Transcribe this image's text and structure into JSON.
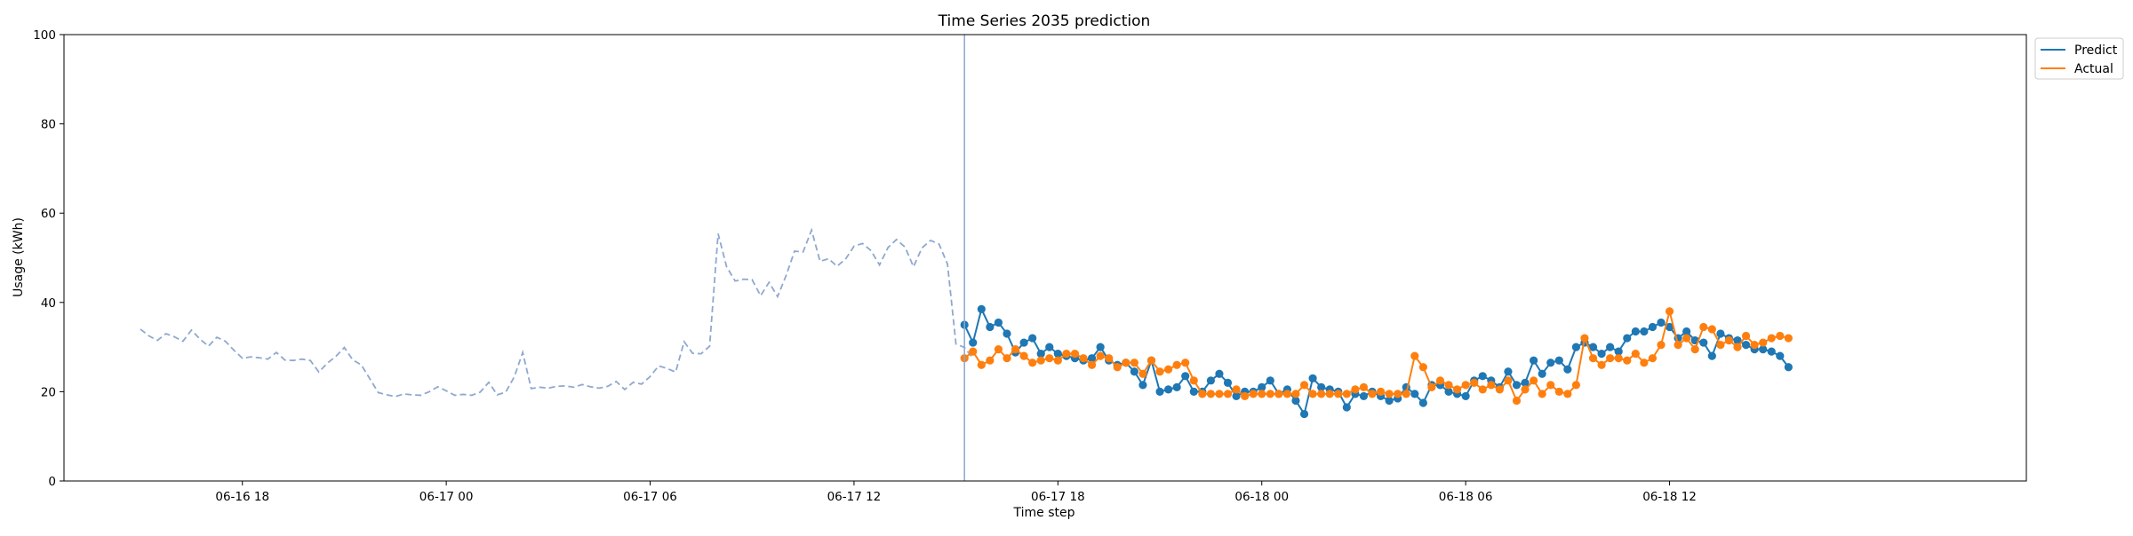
{
  "chart_data": {
    "type": "line",
    "title": "Time Series 2035 prediction",
    "xlabel": "Time step",
    "ylabel": "Usage (kWh)",
    "ylim": [
      0,
      100
    ],
    "xlim": [
      "2035-06-16 12:45",
      "2035-06-18 22:30"
    ],
    "yticks": [
      0,
      20,
      40,
      60,
      80,
      100
    ],
    "xticks": [
      {
        "x": "2035-06-16 18:00",
        "label": "06-16 18"
      },
      {
        "x": "2035-06-17 00:00",
        "label": "06-17 00"
      },
      {
        "x": "2035-06-17 06:00",
        "label": "06-17 06"
      },
      {
        "x": "2035-06-17 12:00",
        "label": "06-17 12"
      },
      {
        "x": "2035-06-17 18:00",
        "label": "06-17 18"
      },
      {
        "x": "2035-06-18 00:00",
        "label": "06-18 00"
      },
      {
        "x": "2035-06-18 06:00",
        "label": "06-18 06"
      },
      {
        "x": "2035-06-18 12:00",
        "label": "06-18 12"
      }
    ],
    "grid": false,
    "legend_position": "outside-top-right",
    "history_start": "2035-06-16 15:00",
    "forecast_start": "2035-06-17 15:15",
    "interval_minutes": 15,
    "prediction_split": "2035-06-17 15:15",
    "series": [
      {
        "style": "dashed",
        "color": "#8fa8d0",
        "times_from": "history_start",
        "values": [
          34.0,
          32.5,
          31.5,
          33.0,
          32.3,
          31.3,
          33.8,
          31.8,
          30.2,
          32.2,
          31.3,
          29.3,
          27.5,
          27.8,
          27.6,
          27.3,
          28.8,
          27.1,
          27.0,
          27.3,
          27.0,
          24.4,
          26.4,
          27.9,
          29.9,
          27.1,
          26.0,
          22.9,
          19.8,
          19.3,
          18.9,
          19.5,
          19.3,
          19.2,
          20.0,
          21.1,
          20.2,
          19.2,
          19.4,
          19.2,
          19.9,
          22.1,
          19.3,
          19.9,
          23.3,
          28.8,
          20.7,
          21.0,
          20.8,
          21.2,
          21.3,
          21.0,
          21.6,
          21.1,
          20.8,
          21.2,
          22.3,
          20.5,
          22.1,
          21.7,
          23.4,
          25.8,
          25.2,
          24.4,
          31.2,
          28.6,
          28.5,
          30.2,
          55.4,
          48.0,
          44.8,
          45.2,
          45.1,
          41.5,
          44.5,
          41.3,
          46.0,
          51.5,
          51.3,
          56.2,
          49.2,
          49.8,
          48.1,
          49.7,
          52.6,
          53.2,
          51.6,
          48.4,
          52.3,
          54.1,
          52.4,
          48.0,
          52.2,
          53.9,
          53.1,
          48.6,
          30.7,
          29.9,
          27.5
        ]
      },
      {
        "name": "Predict",
        "style": "solid-markers",
        "color": "#1f77b4",
        "times_from": "forecast_start",
        "values": [
          35.0,
          31.0,
          38.5,
          34.5,
          35.5,
          33.0,
          28.8,
          31.0,
          32.0,
          28.5,
          30.0,
          28.5,
          28.0,
          27.5,
          27.0,
          27.5,
          30.0,
          27.0,
          26.0,
          26.5,
          24.5,
          21.5,
          27.0,
          20.0,
          20.5,
          21.0,
          23.5,
          20.0,
          20.0,
          22.5,
          24.0,
          22.0,
          19.0,
          20.0,
          20.0,
          21.0,
          22.5,
          19.5,
          20.5,
          18.0,
          15.0,
          23.0,
          21.0,
          20.5,
          20.0,
          16.5,
          19.5,
          19.0,
          20.0,
          19.0,
          18.0,
          18.5,
          21.0,
          19.5,
          17.5,
          21.5,
          21.5,
          20.0,
          19.5,
          19.0,
          22.5,
          23.5,
          22.5,
          21.0,
          24.5,
          21.5,
          22.0,
          27.0,
          24.0,
          26.5,
          27.0,
          25.0,
          30.0,
          31.0,
          30.0,
          28.5,
          30.0,
          29.0,
          32.0,
          33.5,
          33.5,
          34.5,
          35.5,
          34.5,
          32.0,
          33.5,
          31.5,
          31.0,
          28.0,
          33.0,
          32.0,
          31.5,
          30.5,
          29.5,
          29.5,
          29.0,
          28.0,
          25.5
        ]
      },
      {
        "name": "Actual",
        "style": "solid-markers",
        "color": "#ff7f0e",
        "times_from": "forecast_start",
        "values": [
          27.5,
          29.0,
          26.0,
          27.0,
          29.5,
          27.5,
          29.5,
          28.0,
          26.5,
          27.0,
          27.5,
          27.0,
          28.5,
          28.5,
          27.5,
          26.0,
          28.0,
          27.5,
          25.5,
          26.5,
          26.5,
          24.0,
          27.0,
          24.5,
          25.0,
          26.0,
          26.5,
          22.5,
          19.5,
          19.5,
          19.5,
          19.5,
          20.5,
          19.0,
          19.5,
          19.5,
          19.5,
          19.5,
          19.5,
          19.5,
          21.5,
          19.5,
          19.5,
          19.5,
          19.5,
          19.5,
          20.5,
          21.0,
          19.5,
          20.0,
          19.5,
          19.5,
          19.5,
          28.0,
          25.5,
          21.0,
          22.5,
          21.5,
          20.5,
          21.5,
          22.0,
          20.5,
          21.5,
          20.5,
          22.5,
          18.0,
          20.5,
          22.5,
          19.5,
          21.5,
          20.0,
          19.5,
          21.5,
          32.0,
          27.5,
          26.0,
          27.5,
          27.5,
          27.0,
          28.5,
          26.5,
          27.5,
          30.5,
          38.0,
          30.5,
          32.0,
          29.5,
          34.5,
          34.0,
          30.5,
          31.5,
          30.0,
          32.5,
          30.5,
          31.0,
          32.0,
          32.5,
          32.0
        ]
      }
    ]
  },
  "legend": {
    "items": [
      {
        "label": "Predict",
        "color": "#1f77b4"
      },
      {
        "label": "Actual",
        "color": "#ff7f0e"
      }
    ]
  },
  "colors": {
    "axis": "#000000",
    "split_line": "#8fa8d0",
    "history": "#8fa8d0",
    "predict": "#1f77b4",
    "actual": "#ff7f0e"
  }
}
